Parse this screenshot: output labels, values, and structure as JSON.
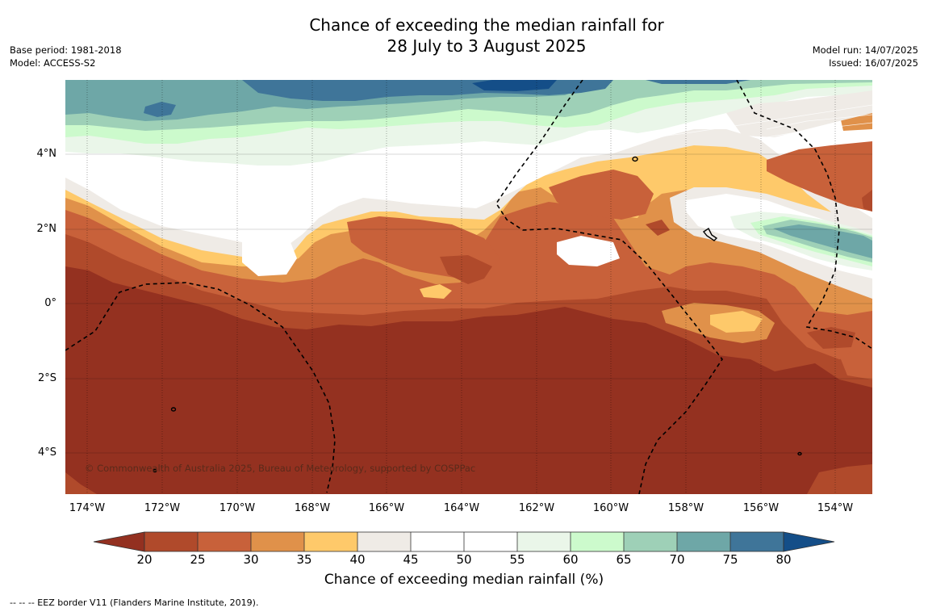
{
  "title": {
    "line1": "Chance of exceeding the median rainfall for",
    "line2": "28 July to 3 August 2025"
  },
  "meta": {
    "base_period": "Base period: 1981-2018",
    "model": "Model: ACCESS-S2",
    "model_run": "Model run: 14/07/2025",
    "issued": "Issued: 16/07/2025"
  },
  "map": {
    "lat_labels": [
      "4°N",
      "2°N",
      "0°",
      "2°S",
      "4°S"
    ],
    "lon_labels": [
      "174°W",
      "172°W",
      "170°W",
      "168°W",
      "166°W",
      "164°W",
      "162°W",
      "160°W",
      "158°W",
      "156°W",
      "154°W"
    ],
    "copyright": "© Commonwealth of Australia 2025, Bureau of Meteorology, supported by COSPPac"
  },
  "colorbar": {
    "ticks": [
      "20",
      "25",
      "30",
      "35",
      "40",
      "45",
      "50",
      "55",
      "60",
      "65",
      "70",
      "75",
      "80"
    ],
    "colors": [
      "#933020",
      "#b04a2b",
      "#c8613a",
      "#e0914a",
      "#fec96a",
      "#efebe6",
      "#ffffff",
      "#ffffff",
      "#eaf6e9",
      "#ccfacc",
      "#9ed0b7",
      "#6ea7a7",
      "#3f7599",
      "#144e88"
    ],
    "title": "Chance of exceeding median rainfall (%)"
  },
  "footnote": "--  --  -- EEZ border V11 (Flanders Marine Institute, 2019)."
}
